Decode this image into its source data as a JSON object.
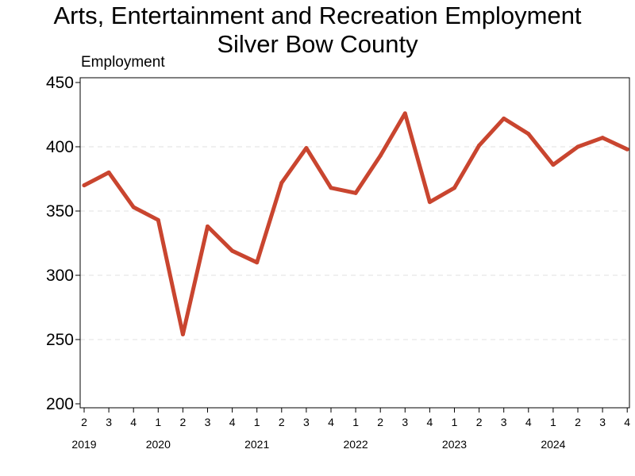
{
  "chart_data": {
    "type": "line",
    "title": "Arts, Entertainment and Recreation Employment",
    "subtitle": "Silver Bow County",
    "ylabel": "Employment",
    "xlabel": "",
    "ylim": [
      200,
      450
    ],
    "yticks": [
      200,
      250,
      300,
      350,
      400,
      450
    ],
    "grid": "horizontal dashed",
    "color": "#c9452f",
    "quarters": [
      "2",
      "3",
      "4",
      "1",
      "2",
      "3",
      "4",
      "1",
      "2",
      "3",
      "4",
      "1",
      "2",
      "3",
      "4",
      "1",
      "2",
      "3",
      "4",
      "1",
      "2",
      "3",
      "4"
    ],
    "years": [
      {
        "label": "2019",
        "start_index": 0
      },
      {
        "label": "2020",
        "start_index": 3
      },
      {
        "label": "2021",
        "start_index": 7
      },
      {
        "label": "2022",
        "start_index": 11
      },
      {
        "label": "2023",
        "start_index": 15
      },
      {
        "label": "2024",
        "start_index": 19
      }
    ],
    "series": [
      {
        "name": "Employment",
        "values": [
          370,
          380,
          353,
          343,
          254,
          338,
          319,
          310,
          372,
          399,
          368,
          364,
          393,
          426,
          357,
          368,
          401,
          422,
          410,
          386,
          400,
          407,
          398
        ]
      }
    ]
  }
}
